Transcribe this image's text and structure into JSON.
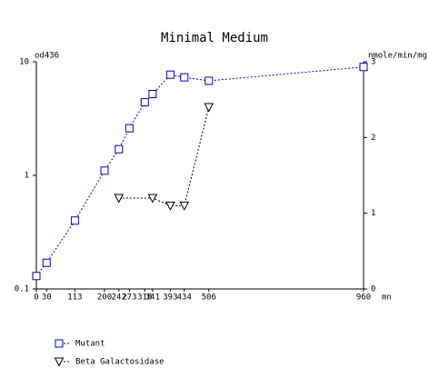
{
  "chart_data": {
    "type": "line",
    "title": "Minimal Medium",
    "xlabel": "mn",
    "ylabel": "od436",
    "y2label": "nmole/min/mg",
    "xlim": [
      0,
      960
    ],
    "xticks": [
      0,
      30,
      113,
      200,
      242,
      273,
      318,
      341,
      393,
      434,
      506,
      960
    ],
    "ylim": [
      0.1,
      10
    ],
    "yticks": [
      0.1,
      1,
      10
    ],
    "ylog": true,
    "y2lim": [
      0,
      3
    ],
    "y2ticks": [
      0,
      1,
      2,
      3
    ],
    "series": [
      {
        "name": "Mutant",
        "color": "#0000cc",
        "marker": "square",
        "x": [
          0,
          30,
          113,
          200,
          242,
          273,
          318,
          341,
          393,
          434,
          506,
          960
        ],
        "values": [
          0.13,
          0.17,
          0.4,
          1.1,
          1.7,
          2.6,
          4.4,
          5.2,
          7.7,
          7.3,
          6.8,
          9.0
        ]
      },
      {
        "name": "Beta Galactosidase",
        "color": "#000000",
        "marker": "triangle-down",
        "axis": "y2",
        "x": [
          242,
          341,
          393,
          434,
          506
        ],
        "values": [
          1.2,
          1.2,
          1.1,
          1.1,
          2.4
        ]
      }
    ]
  }
}
